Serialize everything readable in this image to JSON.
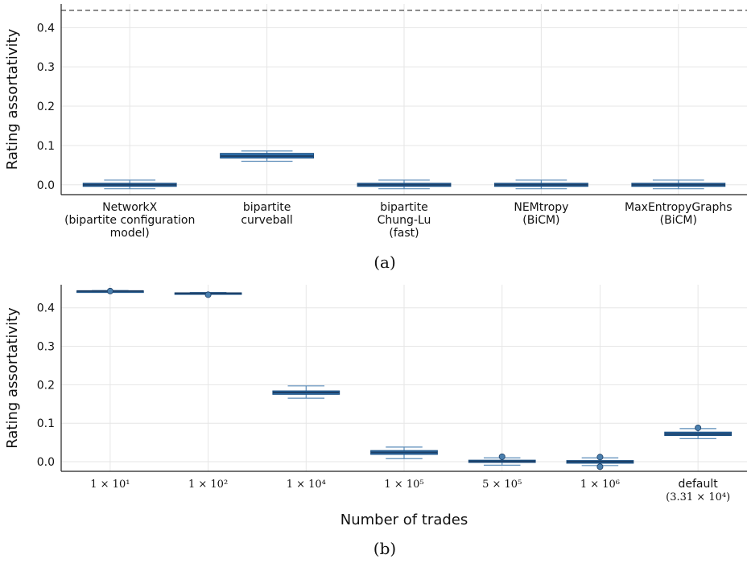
{
  "colors": {
    "box_fill": "#2f6faa",
    "box_edge": "#1a4f82",
    "median": "#1d3f66",
    "whisker": "#5a8bb8",
    "reference_line": "#555555",
    "outlier": "#4a7fae"
  },
  "chart_data": [
    {
      "type": "box",
      "panel_label": "(a)",
      "ylabel": "Rating assortativity",
      "ylim": [
        -0.025,
        0.46
      ],
      "yticks": [
        0.0,
        0.1,
        0.2,
        0.3,
        0.4
      ],
      "ytick_labels": [
        "0.0",
        "0.1",
        "0.2",
        "0.3",
        "0.4"
      ],
      "reference_line": 0.444,
      "grid": true,
      "categories": [
        [
          "NetworkX",
          "(bipartite configuration",
          "model)"
        ],
        [
          "bipartite",
          "curveball"
        ],
        [
          "bipartite",
          "Chung-Lu",
          "(fast)"
        ],
        [
          "NEMtropy",
          "(BiCM)"
        ],
        [
          "MaxEntropyGraphs",
          "(BiCM)"
        ]
      ],
      "boxes": [
        {
          "min": -0.01,
          "q1": -0.004,
          "median": 0.0,
          "q3": 0.004,
          "max": 0.012
        },
        {
          "min": 0.06,
          "q1": 0.068,
          "median": 0.073,
          "q3": 0.08,
          "max": 0.086
        },
        {
          "min": -0.01,
          "q1": -0.004,
          "median": 0.0,
          "q3": 0.004,
          "max": 0.012
        },
        {
          "min": -0.01,
          "q1": -0.004,
          "median": 0.0,
          "q3": 0.004,
          "max": 0.012
        },
        {
          "min": -0.01,
          "q1": -0.004,
          "median": 0.0,
          "q3": 0.004,
          "max": 0.012
        }
      ],
      "outliers": []
    },
    {
      "type": "box",
      "panel_label": "(b)",
      "xlabel": "Number of trades",
      "ylabel": "Rating assortativity",
      "ylim": [
        -0.025,
        0.46
      ],
      "yticks": [
        0.0,
        0.1,
        0.2,
        0.3,
        0.4
      ],
      "ytick_labels": [
        "0.0",
        "0.1",
        "0.2",
        "0.3",
        "0.4"
      ],
      "grid": true,
      "categories": [
        [
          "1 × 10¹"
        ],
        [
          "1 × 10²"
        ],
        [
          "1 × 10⁴"
        ],
        [
          "1 × 10⁵"
        ],
        [
          "5 × 10⁵"
        ],
        [
          "1 × 10⁶"
        ],
        [
          "default",
          "(3.31 × 10⁴)"
        ]
      ],
      "boxes": [
        {
          "min": 0.442,
          "q1": 0.443,
          "median": 0.4435,
          "q3": 0.444,
          "max": 0.445
        },
        {
          "min": 0.436,
          "q1": 0.437,
          "median": 0.438,
          "q3": 0.439,
          "max": 0.44
        },
        {
          "min": 0.165,
          "q1": 0.175,
          "median": 0.18,
          "q3": 0.184,
          "max": 0.197
        },
        {
          "min": 0.008,
          "q1": 0.019,
          "median": 0.024,
          "q3": 0.029,
          "max": 0.038
        },
        {
          "min": -0.009,
          "q1": -0.002,
          "median": 0.001,
          "q3": 0.004,
          "max": 0.01
        },
        {
          "min": -0.01,
          "q1": -0.004,
          "median": 0.0,
          "q3": 0.003,
          "max": 0.01
        },
        {
          "min": 0.06,
          "q1": 0.068,
          "median": 0.072,
          "q3": 0.077,
          "max": 0.086
        }
      ],
      "outliers": [
        {
          "category": 0,
          "value": 0.4435
        },
        {
          "category": 1,
          "value": 0.434
        },
        {
          "category": 4,
          "value": 0.013
        },
        {
          "category": 5,
          "value": 0.012
        },
        {
          "category": 5,
          "value": -0.013
        },
        {
          "category": 6,
          "value": 0.088
        }
      ]
    }
  ]
}
